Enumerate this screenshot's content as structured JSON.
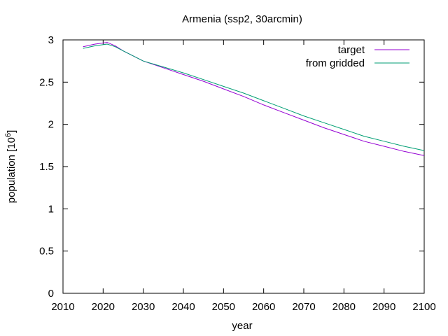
{
  "chart_data": {
    "type": "line",
    "title": "Armenia (ssp2, 30arcmin)",
    "xlabel": "year",
    "ylabel": "population [10^6]",
    "ylabel_base": "population [10",
    "ylabel_exp": "6",
    "ylabel_close": "]",
    "xlim": [
      2010,
      2100
    ],
    "ylim": [
      0,
      3
    ],
    "xticks": [
      2010,
      2020,
      2030,
      2040,
      2050,
      2060,
      2070,
      2080,
      2090,
      2100
    ],
    "xtick_labels": [
      "2010",
      "2020",
      "2030",
      "2040",
      "2050",
      "2060",
      "2070",
      "2080",
      "2090",
      "2100"
    ],
    "yticks": [
      0,
      0.5,
      1,
      1.5,
      2,
      2.5,
      3
    ],
    "ytick_labels": [
      "0",
      "0.5",
      "1",
      "1.5",
      "2",
      "2.5",
      "3"
    ],
    "grid": false,
    "legend_position": "top-right",
    "series": [
      {
        "name": "target",
        "color": "#9400d3",
        "x": [
          2015,
          2018,
          2021,
          2023,
          2025,
          2030,
          2035,
          2040,
          2045,
          2050,
          2055,
          2060,
          2065,
          2070,
          2075,
          2080,
          2085,
          2090,
          2095,
          2100
        ],
        "y": [
          2.92,
          2.95,
          2.97,
          2.93,
          2.87,
          2.75,
          2.67,
          2.59,
          2.51,
          2.42,
          2.33,
          2.23,
          2.14,
          2.05,
          1.96,
          1.88,
          1.8,
          1.74,
          1.68,
          1.63
        ]
      },
      {
        "name": "from gridded",
        "color": "#009e73",
        "x": [
          2015,
          2018,
          2021,
          2023,
          2025,
          2030,
          2035,
          2040,
          2045,
          2050,
          2055,
          2060,
          2065,
          2070,
          2075,
          2080,
          2085,
          2090,
          2095,
          2100
        ],
        "y": [
          2.9,
          2.93,
          2.95,
          2.92,
          2.87,
          2.75,
          2.68,
          2.61,
          2.53,
          2.45,
          2.37,
          2.28,
          2.19,
          2.1,
          2.02,
          1.94,
          1.86,
          1.8,
          1.74,
          1.69
        ]
      }
    ]
  }
}
